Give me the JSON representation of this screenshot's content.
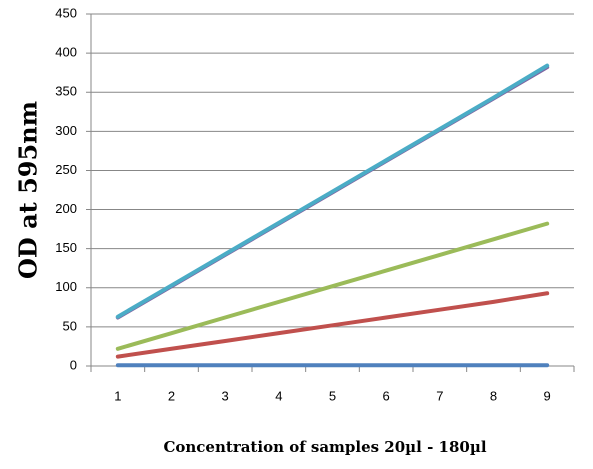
{
  "chart_data": {
    "type": "line",
    "y_label": "OD  at  595nm",
    "x_label": "Concentration of samples 20µl - 180µl",
    "categories": [
      "1",
      "2",
      "3",
      "4",
      "5",
      "6",
      "7",
      "8",
      "9"
    ],
    "series": [
      {
        "color": "#4f81bd",
        "values": [
          1,
          1,
          1,
          1,
          1,
          1,
          1,
          1,
          1
        ]
      },
      {
        "color": "#c0504d",
        "values": [
          12,
          22,
          32,
          42,
          52,
          62,
          72,
          82,
          93
        ]
      },
      {
        "color": "#9bbb59",
        "values": [
          22,
          42,
          62,
          82,
          102,
          122,
          142,
          162,
          182
        ]
      },
      {
        "color": "#8064a2",
        "values": [
          62,
          102,
          142,
          182,
          222,
          262,
          302,
          342,
          382
        ]
      },
      {
        "color": "#4bacc6",
        "values": [
          63,
          103,
          143,
          183,
          223,
          263,
          303,
          343,
          384
        ]
      }
    ],
    "ylim": [
      0,
      450
    ],
    "yticks": [
      0,
      50,
      100,
      150,
      200,
      250,
      300,
      350,
      400,
      450
    ],
    "grid": true
  }
}
